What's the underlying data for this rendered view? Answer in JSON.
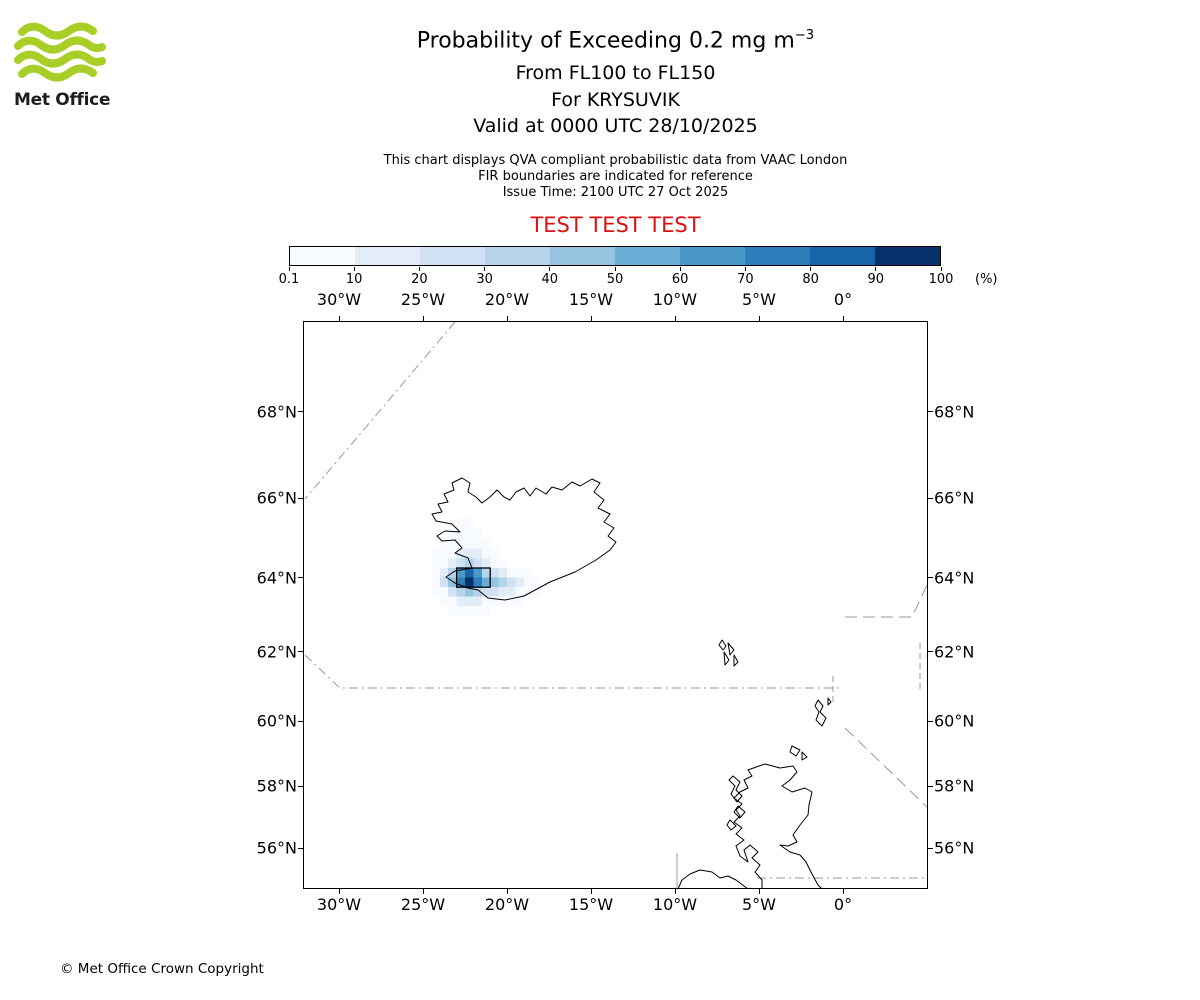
{
  "logo": {
    "text": "Met Office",
    "green": "#a8ce27",
    "text_color": "#1d1d1b"
  },
  "header": {
    "title_main": "Probability of Exceeding 0.2 mg m",
    "title_sup": "−3",
    "subtitle_fl": "From FL100 to FL150",
    "subtitle_volcano": "For KRYSUVIK",
    "subtitle_valid": "Valid at 0000 UTC 28/10/2025",
    "info_qva": "This chart displays QVA compliant probabilistic data from VAAC London",
    "info_fir": "FIR boundaries are indicated for reference",
    "info_issue": "Issue Time: 2100 UTC 27 Oct 2025",
    "test_banner": "TEST TEST TEST",
    "test_color": "#dd1111"
  },
  "colorbar": {
    "levels": [
      "0.1",
      "10",
      "20",
      "30",
      "40",
      "50",
      "60",
      "70",
      "80",
      "90",
      "100"
    ],
    "unit": "(%)",
    "colors": [
      "#f7fbff",
      "#e2edf8",
      "#cfe1f2",
      "#b5d4e9",
      "#94c4df",
      "#6aaed6",
      "#4a98c9",
      "#2e7ebc",
      "#1764ab",
      "#08306b"
    ]
  },
  "map": {
    "lon_ticks": [
      {
        "label": "30°W",
        "lon": 30
      },
      {
        "label": "25°W",
        "lon": 25
      },
      {
        "label": "20°W",
        "lon": 20
      },
      {
        "label": "15°W",
        "lon": 15
      },
      {
        "label": "10°W",
        "lon": 10
      },
      {
        "label": "5°W",
        "lon": 5
      },
      {
        "label": "0°",
        "lon": 0
      }
    ],
    "lat_ticks": [
      {
        "label": "68°N",
        "lat": 68
      },
      {
        "label": "66°N",
        "lat": 66
      },
      {
        "label": "64°N",
        "lat": 64
      },
      {
        "label": "62°N",
        "lat": 62
      },
      {
        "label": "60°N",
        "lat": 60
      },
      {
        "label": "58°N",
        "lat": 58
      },
      {
        "label": "56°N",
        "lat": 56
      }
    ]
  },
  "chart_data": {
    "type": "heatmap",
    "title": "Probability of Exceeding 0.2 mg m-3",
    "layer": "From FL100 to FL150",
    "volcano": "KRYSUVIK",
    "valid_time": "0000 UTC 28/10/2025",
    "issue_time": "2100 UTC 27 Oct 2025",
    "source": "VAAC London",
    "units": "%",
    "levels_percent": [
      0.1,
      10,
      20,
      30,
      40,
      50,
      60,
      70,
      80,
      90,
      100
    ],
    "map_extent": {
      "lon_min_deg_east": -32.1,
      "lon_max_deg_east": 5.1,
      "lat_min_deg_north": 54.7,
      "lat_max_deg_north": 70.3
    },
    "grid": {
      "note": "probability of exceedance in percent; lon_west_start is degrees WEST of the left edge of the first column; rows run north to south",
      "lon_west_start": 24.5,
      "dlon_deg": 0.5,
      "lat_north_start": 65.5,
      "dlat_deg": 0.25,
      "values_percent": [
        [
          0,
          0,
          0,
          3,
          3,
          0,
          0,
          0,
          0,
          0,
          0,
          0,
          0
        ],
        [
          0,
          0,
          3,
          5,
          5,
          3,
          0,
          0,
          0,
          0,
          0,
          0,
          0
        ],
        [
          0,
          3,
          5,
          8,
          8,
          5,
          3,
          0,
          0,
          0,
          0,
          0,
          0
        ],
        [
          3,
          5,
          8,
          15,
          15,
          10,
          5,
          3,
          0,
          0,
          0,
          0,
          0
        ],
        [
          5,
          8,
          15,
          25,
          30,
          20,
          12,
          5,
          3,
          0,
          0,
          0,
          0
        ],
        [
          8,
          15,
          35,
          65,
          85,
          60,
          35,
          20,
          12,
          8,
          5,
          3,
          0
        ],
        [
          5,
          20,
          45,
          75,
          95,
          70,
          55,
          45,
          35,
          25,
          15,
          8,
          3
        ],
        [
          3,
          8,
          20,
          35,
          40,
          30,
          25,
          20,
          15,
          10,
          8,
          5,
          3
        ],
        [
          0,
          3,
          8,
          12,
          15,
          10,
          8,
          8,
          5,
          3,
          3,
          0,
          0
        ],
        [
          0,
          0,
          3,
          5,
          5,
          3,
          3,
          0,
          0,
          0,
          0,
          0,
          0
        ]
      ]
    },
    "contour_threshold_percent": 50
  },
  "footer": {
    "copyright": "© Met Office Crown Copyright"
  }
}
